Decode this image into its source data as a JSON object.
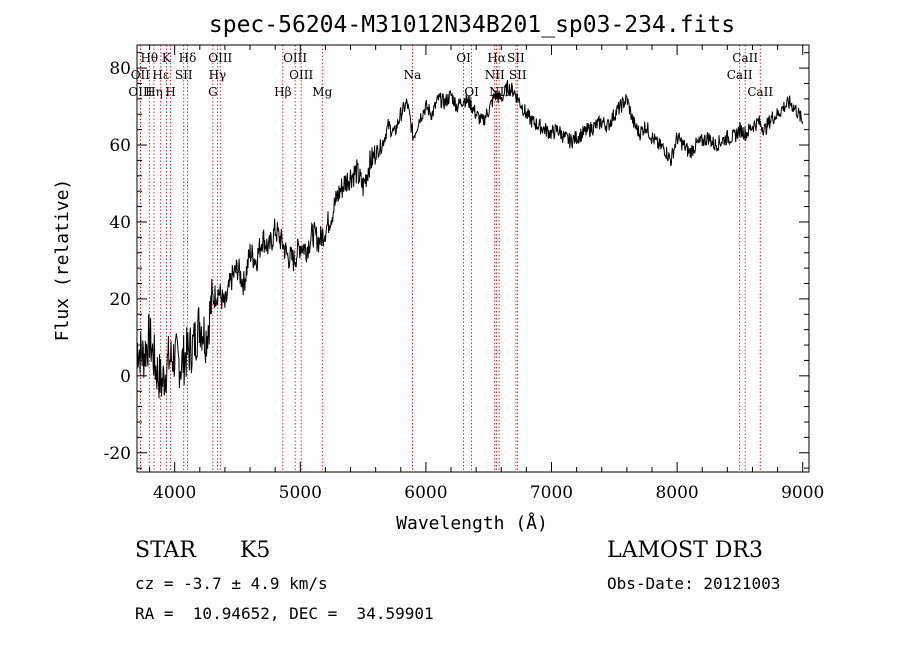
{
  "chart_data": {
    "type": "line",
    "title": "spec-56204-M31012N34B201_sp03-234.fits",
    "xlabel": "Wavelength (Å)",
    "ylabel": "Flux (relative)",
    "xlim": [
      3700,
      9050
    ],
    "ylim": [
      -25,
      86
    ],
    "x_ticks": [
      4000,
      5000,
      6000,
      7000,
      8000,
      9000
    ],
    "y_ticks": [
      -20,
      0,
      20,
      40,
      60,
      80
    ],
    "series": [
      {
        "name": "flux",
        "x": [
          3700,
          3750,
          3800,
          3850,
          3900,
          3950,
          4000,
          4050,
          4100,
          4150,
          4200,
          4250,
          4300,
          4350,
          4400,
          4450,
          4500,
          4550,
          4600,
          4650,
          4700,
          4750,
          4800,
          4850,
          4900,
          4950,
          5000,
          5050,
          5100,
          5150,
          5200,
          5250,
          5300,
          5350,
          5400,
          5450,
          5500,
          5550,
          5600,
          5650,
          5700,
          5750,
          5800,
          5850,
          5900,
          5950,
          6000,
          6050,
          6100,
          6150,
          6200,
          6250,
          6300,
          6350,
          6400,
          6450,
          6500,
          6550,
          6600,
          6650,
          6700,
          6750,
          6800,
          6850,
          6900,
          6950,
          7000,
          7050,
          7100,
          7150,
          7200,
          7250,
          7300,
          7350,
          7400,
          7450,
          7500,
          7550,
          7600,
          7650,
          7700,
          7750,
          7800,
          7850,
          7900,
          7950,
          8000,
          8050,
          8100,
          8150,
          8200,
          8250,
          8300,
          8350,
          8400,
          8450,
          8500,
          8550,
          8600,
          8650,
          8700,
          8750,
          8800,
          8850,
          8900,
          8950,
          9000
        ],
        "y": [
          8,
          5,
          10,
          2,
          -2,
          4,
          5,
          3,
          6,
          8,
          14,
          10,
          20,
          22,
          18,
          25,
          28,
          24,
          32,
          30,
          36,
          33,
          38,
          35,
          31,
          30,
          34,
          33,
          37,
          35,
          38,
          42,
          47,
          50,
          52,
          53,
          49,
          55,
          58,
          60,
          65,
          63,
          68,
          71,
          62,
          67,
          70,
          68,
          72,
          71,
          73,
          70,
          72,
          71,
          68,
          66,
          69,
          73,
          72,
          75,
          74,
          71,
          68,
          66,
          65,
          64,
          63,
          64,
          62,
          61,
          62,
          63,
          64,
          65,
          66,
          65,
          68,
          70,
          72,
          66,
          63,
          65,
          62,
          60,
          59,
          56,
          62,
          60,
          58,
          60,
          61,
          62,
          60,
          61,
          62,
          62,
          64,
          63,
          65,
          66,
          64,
          67,
          68,
          70,
          71,
          69,
          66
        ]
      }
    ],
    "spectral_lines": [
      {
        "label": "Hθ",
        "wavelength": 3798,
        "row": 0
      },
      {
        "label": "K",
        "wavelength": 3934,
        "row": 0
      },
      {
        "label": "Hδ",
        "wavelength": 4102,
        "row": 0
      },
      {
        "label": "OIII",
        "wavelength": 4363,
        "row": 0
      },
      {
        "label": "OIII",
        "wavelength": 4959,
        "row": 0
      },
      {
        "label": "OI",
        "wavelength": 6300,
        "row": 0
      },
      {
        "label": "Hα",
        "wavelength": 6563,
        "row": 0
      },
      {
        "label": "SII",
        "wavelength": 6717,
        "row": 0
      },
      {
        "label": "CaII",
        "wavelength": 8542,
        "row": 0
      },
      {
        "label": "OII",
        "wavelength": 3727,
        "row": 1
      },
      {
        "label": "Hε",
        "wavelength": 3889,
        "row": 1
      },
      {
        "label": "SII",
        "wavelength": 4072,
        "row": 1
      },
      {
        "label": "Hγ",
        "wavelength": 4340,
        "row": 1
      },
      {
        "label": "OIII",
        "wavelength": 5007,
        "row": 1
      },
      {
        "label": "Na",
        "wavelength": 5893,
        "row": 1
      },
      {
        "label": "NII",
        "wavelength": 6548,
        "row": 1
      },
      {
        "label": "SII",
        "wavelength": 6731,
        "row": 1
      },
      {
        "label": "CaII",
        "wavelength": 8498,
        "row": 1
      },
      {
        "label": "OIII",
        "wavelength": 3727,
        "row": 2
      },
      {
        "label": "Hη",
        "wavelength": 3835,
        "row": 2
      },
      {
        "label": "H",
        "wavelength": 3968,
        "row": 2
      },
      {
        "label": "G",
        "wavelength": 4304,
        "row": 2
      },
      {
        "label": "Hβ",
        "wavelength": 4861,
        "row": 2
      },
      {
        "label": "Mg",
        "wavelength": 5175,
        "row": 2
      },
      {
        "label": "OI",
        "wavelength": 6364,
        "row": 2
      },
      {
        "label": "NII",
        "wavelength": 6583,
        "row": 2
      },
      {
        "label": "CaII",
        "wavelength": 8662,
        "row": 2
      }
    ]
  },
  "info": {
    "object_class": "STAR",
    "subclass": "K5",
    "survey": "LAMOST DR3",
    "redshift": "cz = -3.7 ± 4.9 km/s",
    "obs_date": "Obs-Date: 20121003",
    "coords": "RA =  10.94652, DEC =  34.59901"
  }
}
